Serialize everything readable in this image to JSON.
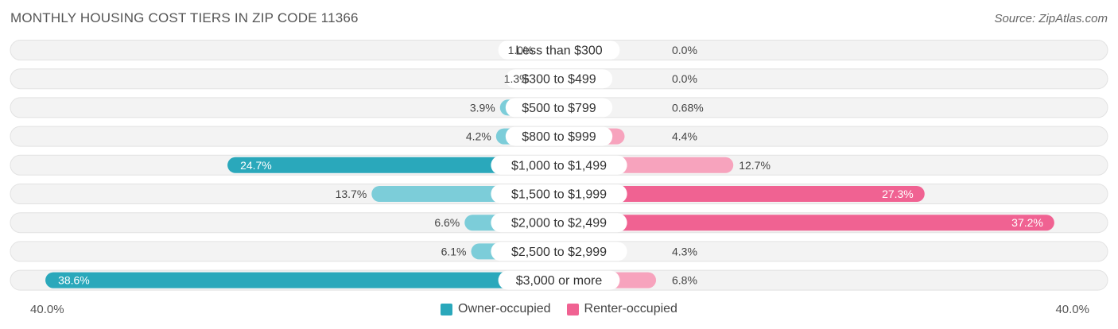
{
  "header": {
    "title": "MONTHLY HOUSING COST TIERS IN ZIP CODE 11366",
    "source": "Source: ZipAtlas.com"
  },
  "chart_data": {
    "type": "bar",
    "orientation": "horizontal-diverging",
    "categories": [
      "Less than $300",
      "$300 to $499",
      "$500 to $799",
      "$800 to $999",
      "$1,000 to $1,499",
      "$1,500 to $1,999",
      "$2,000 to $2,499",
      "$2,500 to $2,999",
      "$3,000 or more"
    ],
    "series": [
      {
        "name": "Owner-occupied",
        "side": "left",
        "color": "#5bbccb",
        "values": [
          1.0,
          1.3,
          3.9,
          4.2,
          24.7,
          13.7,
          6.6,
          6.1,
          38.6
        ],
        "labels": [
          "1.0%",
          "1.3%",
          "3.9%",
          "4.2%",
          "24.7%",
          "13.7%",
          "6.6%",
          "6.1%",
          "38.6%"
        ]
      },
      {
        "name": "Renter-occupied",
        "side": "right",
        "color": "#f57aa0",
        "values": [
          0.0,
          0.0,
          0.68,
          4.4,
          12.7,
          27.3,
          37.2,
          4.3,
          6.8
        ],
        "labels": [
          "0.0%",
          "0.0%",
          "0.68%",
          "4.4%",
          "12.7%",
          "27.3%",
          "37.2%",
          "4.3%",
          "6.8%"
        ]
      }
    ],
    "axis": {
      "min_label": "40.0%",
      "max_label": "40.0%",
      "range": [
        0,
        40
      ]
    },
    "legend_position": "bottom-center"
  }
}
